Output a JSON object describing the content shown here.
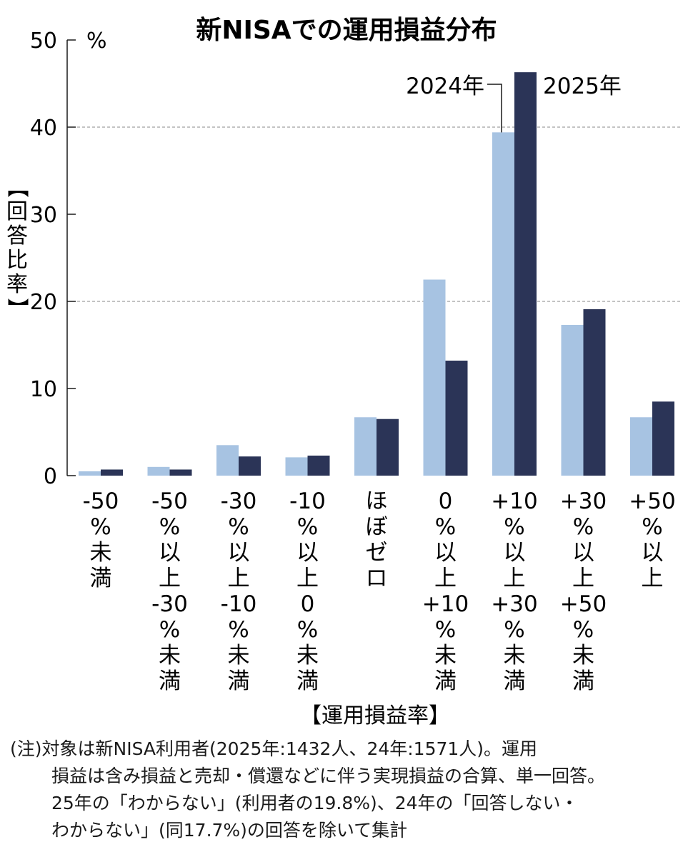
{
  "chart_data": {
    "type": "bar",
    "title": "新NISAでの運用損益分布",
    "ylabel": "【回答比率】",
    "yunit": "%",
    "xlabel": "【運用損益率】",
    "ylim": [
      0,
      50
    ],
    "yticks": [
      "0",
      "10",
      "20",
      "30",
      "40",
      "50"
    ],
    "grid_values": [
      20,
      40
    ],
    "categories": [
      [
        "-50",
        "%",
        "未",
        "満"
      ],
      [
        "-50",
        "%",
        "以",
        "上",
        "-30",
        "%",
        "未",
        "満"
      ],
      [
        "-30",
        "%",
        "以",
        "上",
        "-10",
        "%",
        "未",
        "満"
      ],
      [
        "-10",
        "%",
        "以",
        "上",
        "0",
        "%",
        "未",
        "満"
      ],
      [
        "ほ",
        "ぼ",
        "ゼ",
        "ロ"
      ],
      [
        "0",
        "%",
        "以",
        "上",
        "+10",
        "%",
        "未",
        "満"
      ],
      [
        "+10",
        "%",
        "以",
        "上",
        "+30",
        "%",
        "未",
        "満"
      ],
      [
        "+30",
        "%",
        "以",
        "上",
        "+50",
        "%",
        "未",
        "満"
      ],
      [
        "+50",
        "%",
        "以",
        "上"
      ]
    ],
    "series": [
      {
        "name": "2024年",
        "color": "#a7c3e2",
        "values": [
          0.5,
          1.0,
          3.5,
          2.1,
          6.7,
          22.5,
          39.4,
          17.3,
          6.7
        ]
      },
      {
        "name": "2025年",
        "color": "#2b3457",
        "values": [
          0.7,
          0.7,
          2.2,
          2.3,
          6.5,
          13.2,
          46.3,
          19.1,
          8.5
        ]
      }
    ]
  },
  "note": {
    "lines": [
      "(注)対象は新NISA利用者(2025年:1432人、24年:1571人)。運用",
      "損益は含み損益と売却・償還などに伴う実現損益の合算、単一回答。",
      "25年の「わからない」(利用者の19.8%)、24年の「回答しない・",
      "わからない」(同17.7%)の回答を除いて集計"
    ]
  }
}
